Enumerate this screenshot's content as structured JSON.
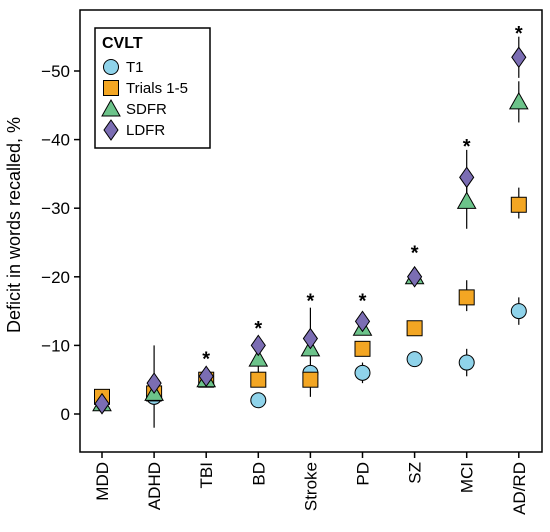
{
  "chart_data": {
    "type": "scatter",
    "ylabel": "Deficit in words recalled, %",
    "xlabel": "",
    "ylim": [
      5,
      -58
    ],
    "yticks": [
      0,
      -10,
      -20,
      -30,
      -40,
      -50
    ],
    "ytick_labels": [
      "0",
      "−10",
      "−20",
      "−30",
      "−40",
      "−50"
    ],
    "categories": [
      "MDD",
      "ADHD",
      "TBI",
      "BD",
      "Stroke",
      "PD",
      "SZ",
      "MCI",
      "AD/RD"
    ],
    "legend": {
      "title": "CVLT",
      "position": "top-left",
      "entries": [
        "T1",
        "Trials 1-5",
        "SDFR",
        "LDFR"
      ]
    },
    "series": [
      {
        "name": "T1",
        "marker": "circle",
        "color": "#8fd3ea",
        "values": [
          null,
          -2.5,
          null,
          -2,
          -6,
          -6,
          -8,
          -7.5,
          -15
        ],
        "error_bars": [
          null,
          null,
          null,
          null,
          null,
          [
            -4.5,
            -7.5
          ],
          null,
          [
            -5.5,
            -9.5
          ],
          [
            -13,
            -17
          ]
        ]
      },
      {
        "name": "Trials 1-5",
        "marker": "square",
        "color": "#f3a623",
        "values": [
          -2.5,
          -3,
          -5,
          -5,
          -5,
          -9.5,
          -12.5,
          -17,
          -30.5
        ],
        "error_bars": [
          null,
          null,
          null,
          null,
          null,
          null,
          null,
          [
            -15,
            -19.5
          ],
          [
            -28.5,
            -33
          ]
        ]
      },
      {
        "name": "SDFR",
        "marker": "triangle",
        "color": "#6cc38a",
        "values": [
          -1.5,
          -3,
          -5,
          -8,
          -9.5,
          -12.5,
          -20,
          -31,
          -45.5
        ],
        "error_bars": [
          null,
          null,
          null,
          [
            -6,
            -10
          ],
          null,
          null,
          null,
          [
            -27,
            -34
          ],
          [
            -42.5,
            -48.5
          ]
        ]
      },
      {
        "name": "LDFR",
        "marker": "diamond",
        "color": "#7b6db3",
        "values": [
          -1.5,
          -4.5,
          -5.5,
          -10,
          -11,
          -13.5,
          -20,
          -34.5,
          -52
        ],
        "error_bars": [
          null,
          [
            2,
            -10
          ],
          null,
          null,
          [
            -2.5,
            -15.5
          ],
          null,
          null,
          [
            -31.5,
            -38.5
          ],
          [
            -49,
            -55
          ]
        ]
      }
    ],
    "significance": {
      "marker": "*",
      "categories": [
        "TBI",
        "BD",
        "Stroke",
        "PD",
        "SZ",
        "MCI",
        "AD/RD"
      ],
      "values": [
        -8.5,
        -13,
        -17,
        -17,
        -24,
        -39.5,
        -56
      ]
    },
    "grid": false
  }
}
